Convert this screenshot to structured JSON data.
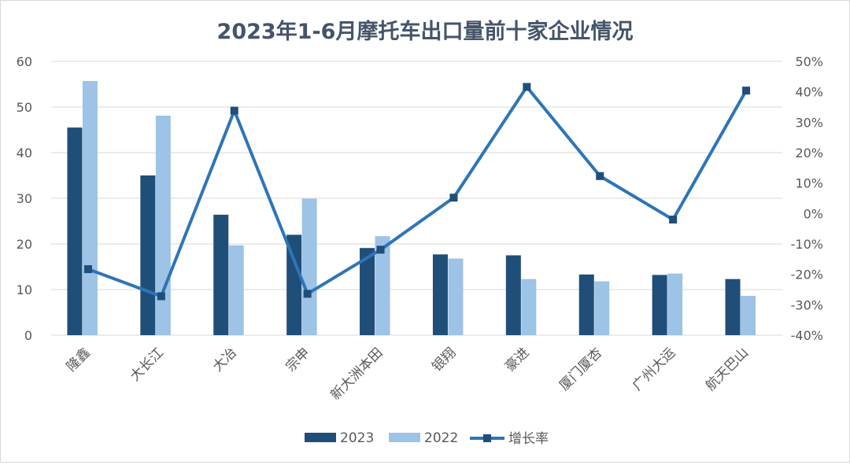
{
  "chart_data": {
    "type": "bar",
    "title": "2023年1-6月摩托车出口量前十家企业情况",
    "categories": [
      "隆鑫",
      "大长江",
      "大冶",
      "宗申",
      "新大洲本田",
      "银翔",
      "豪进",
      "厦门厦杏",
      "广州大运",
      "航天巴山"
    ],
    "series": [
      {
        "name": "2023",
        "kind": "bar",
        "axis": "left",
        "color": "#1f4e79",
        "values": [
          45.5,
          35.0,
          26.4,
          22.0,
          19.1,
          17.7,
          17.5,
          13.3,
          13.2,
          12.3
        ]
      },
      {
        "name": "2022",
        "kind": "bar",
        "axis": "left",
        "color": "#9dc3e6",
        "values": [
          55.7,
          48.1,
          19.7,
          29.9,
          21.7,
          16.8,
          12.3,
          11.8,
          13.5,
          8.6
        ]
      },
      {
        "name": "增长率",
        "kind": "line",
        "axis": "right",
        "color": "#2e75b6",
        "values": [
          -18.3,
          -27.2,
          33.8,
          -26.4,
          -11.9,
          5.2,
          41.6,
          12.3,
          -2.0,
          40.4
        ]
      }
    ],
    "ylim_left": [
      0,
      60
    ],
    "yticks_left": [
      "0",
      "10",
      "20",
      "30",
      "40",
      "50",
      "60"
    ],
    "ylim_right": [
      -40,
      50
    ],
    "yticks_right": [
      "-40%",
      "-30%",
      "-20%",
      "-10%",
      "0%",
      "10%",
      "20%",
      "30%",
      "40%",
      "50%"
    ],
    "grid": true,
    "legend_position": "bottom"
  }
}
